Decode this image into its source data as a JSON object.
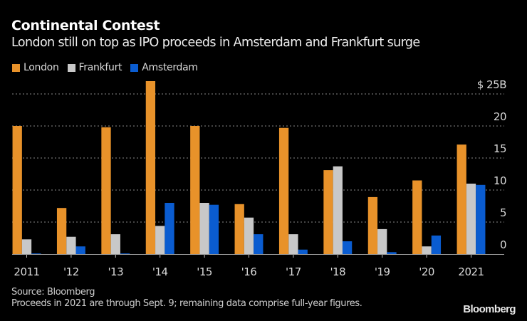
{
  "header": {
    "title": "Continental Contest",
    "subtitle": "London still on top as IPO proceeds in Amsterdam and Frankfurt surge"
  },
  "footer": {
    "source": "Source: Bloomberg",
    "note": "Proceeds in 2021 are through Sept. 9; remaining data comprise full-year figures.",
    "logo": "Bloomberg"
  },
  "chart_data": {
    "type": "bar",
    "title": "Continental Contest",
    "subtitle": "London still on top as IPO proceeds in Amsterdam and Frankfurt surge",
    "xlabel": "",
    "ylabel": "",
    "categories": [
      "2011",
      "'12",
      "'13",
      "'14",
      "'15",
      "'16",
      "'17",
      "'18",
      "'19",
      "'20",
      "2021"
    ],
    "series": [
      {
        "name": "London",
        "color": "#E8922A",
        "values": [
          20.0,
          7.2,
          19.8,
          27.0,
          20.0,
          7.8,
          19.7,
          13.1,
          8.9,
          11.5,
          17.1
        ]
      },
      {
        "name": "Frankfurt",
        "color": "#C8C8C8",
        "values": [
          2.3,
          2.7,
          3.1,
          4.4,
          8.0,
          5.7,
          3.1,
          13.7,
          3.9,
          1.2,
          11.0
        ]
      },
      {
        "name": "Amsterdam",
        "color": "#0A5CD0",
        "values": [
          0.1,
          1.2,
          0.1,
          8.0,
          7.7,
          3.1,
          0.7,
          2.0,
          0.3,
          2.9,
          10.8
        ]
      }
    ],
    "ylim": [
      0,
      25
    ],
    "yticks": [
      0,
      5,
      10,
      15,
      20,
      25
    ],
    "ytick_labels": [
      "0",
      "5",
      "10",
      "15",
      "20",
      "$ 25B"
    ],
    "y_axis_position": "right",
    "grid": true,
    "legend_position": "top-left"
  }
}
